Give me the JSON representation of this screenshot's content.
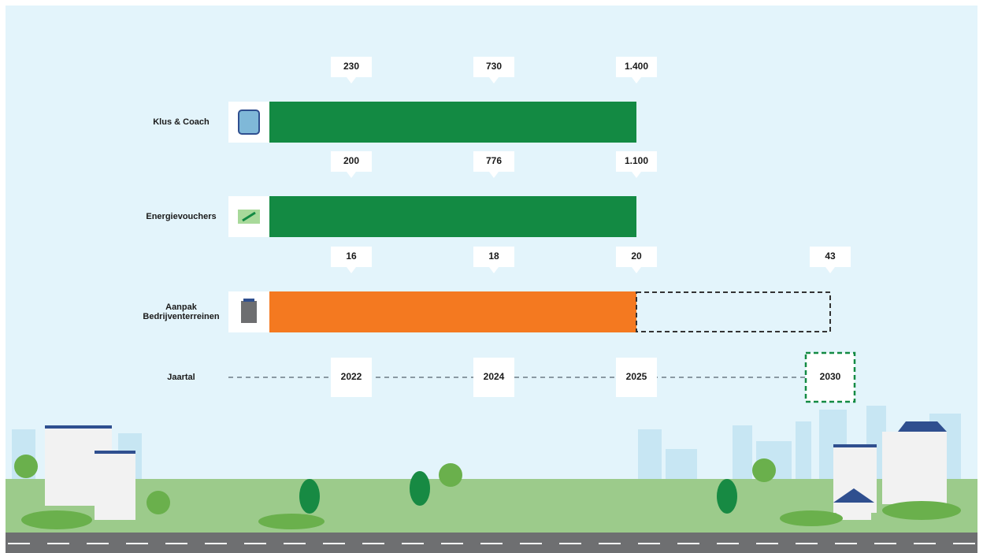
{
  "chart_data": {
    "type": "milestone-bar",
    "axis_label": "Jaartal",
    "categories": [
      "2022",
      "2024",
      "2025",
      "2030"
    ],
    "highlighted_category": "2030",
    "series": [
      {
        "name": "Klus & Coach",
        "color": "#138a43",
        "values": [
          230,
          730,
          1400,
          null
        ],
        "value_labels": [
          "230",
          "730",
          "1.400",
          null
        ]
      },
      {
        "name": "Energievouchers",
        "color": "#138a43",
        "values": [
          200,
          776,
          1100,
          null
        ],
        "value_labels": [
          "200",
          "776",
          "1.100",
          null
        ]
      },
      {
        "name": "Aanpak Bedrijventerreinen",
        "color": "#f47920",
        "values": [
          16,
          18,
          20,
          43
        ]
      }
    ]
  }
}
